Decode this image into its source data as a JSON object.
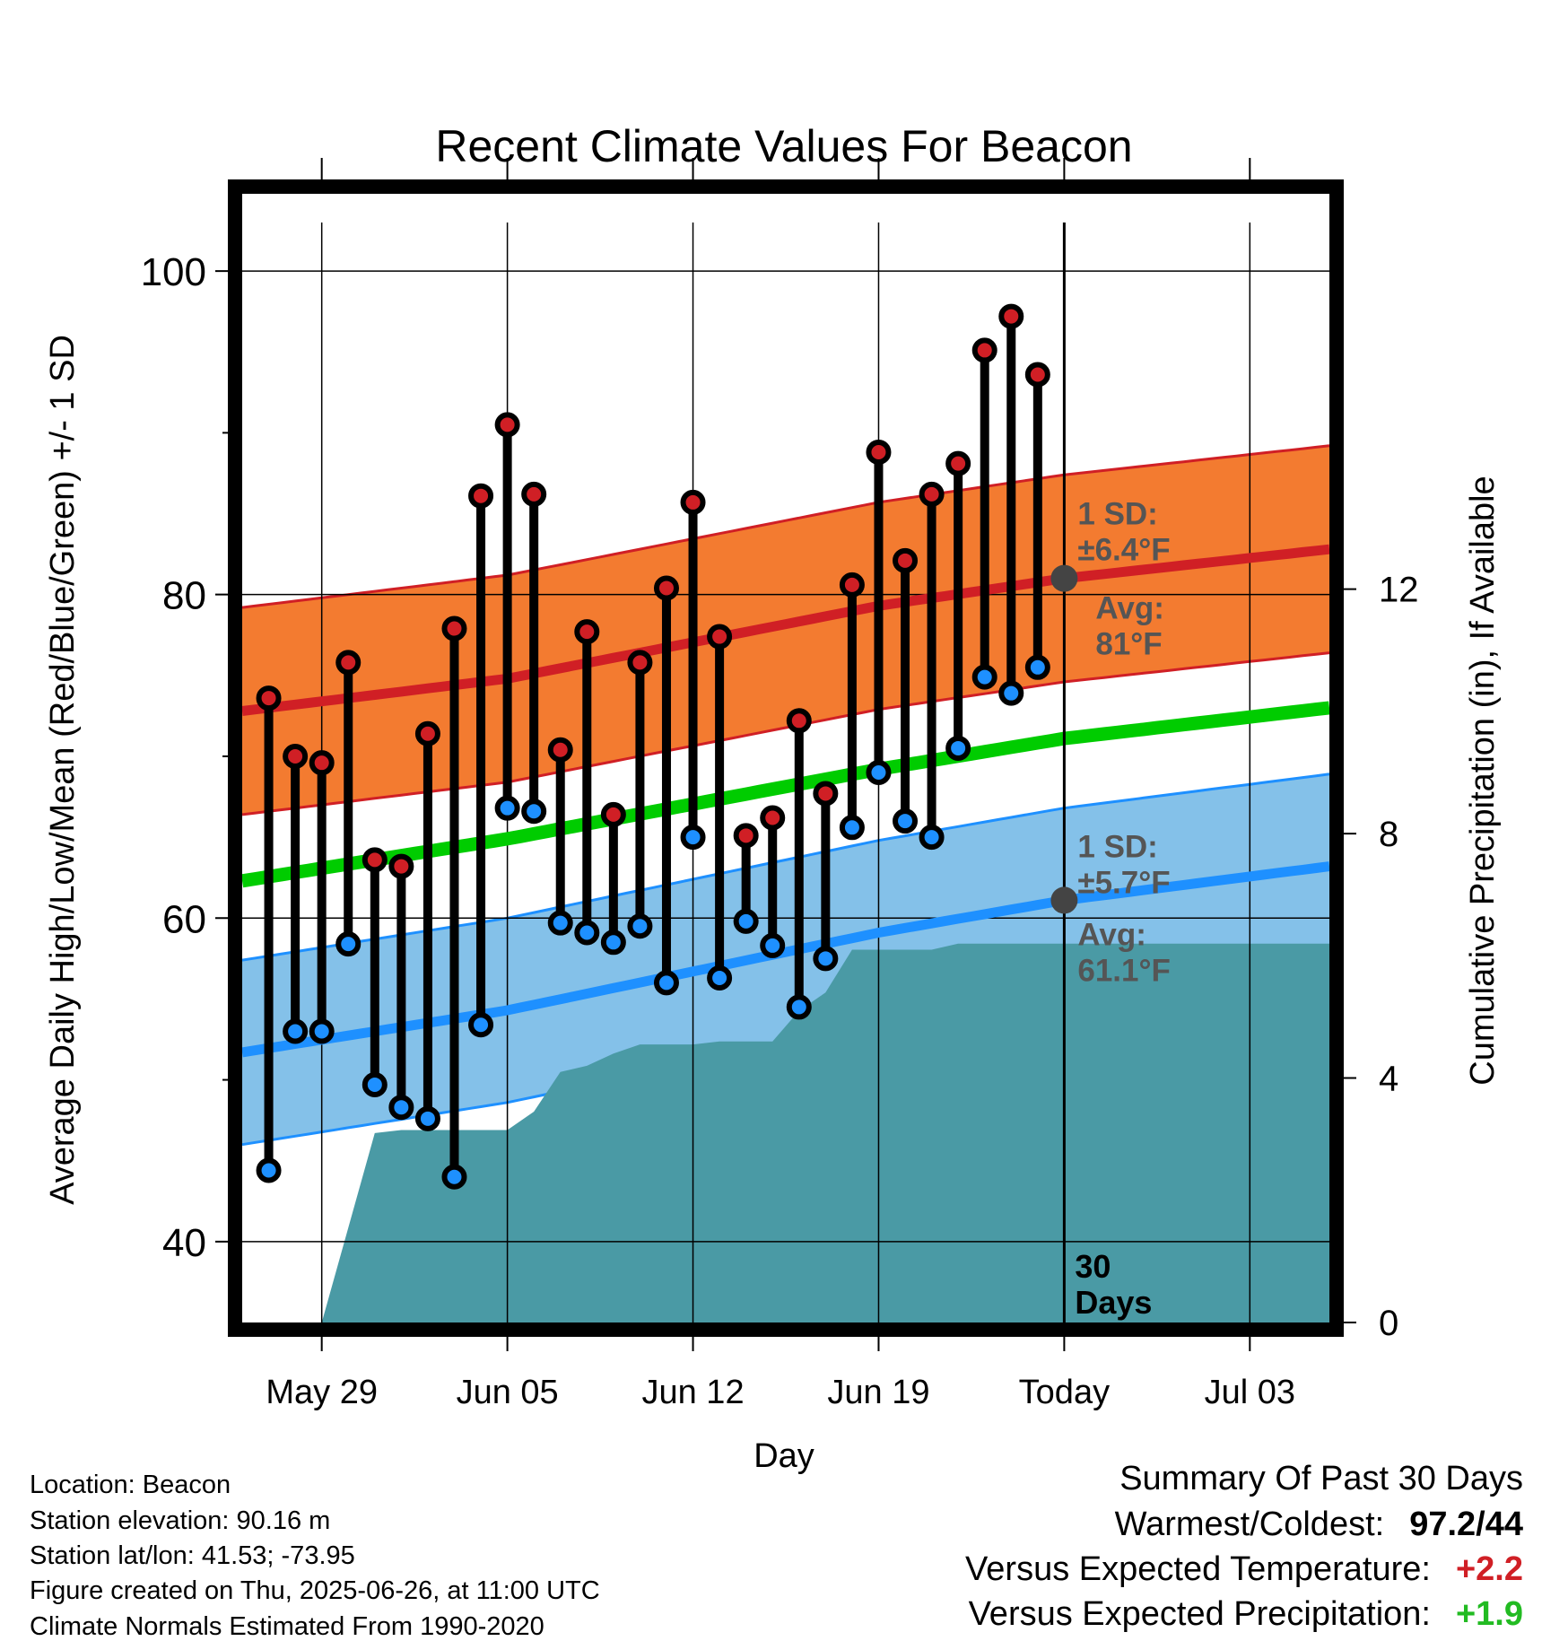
{
  "chart_data": {
    "type": "line",
    "title": "Recent Climate Values For Beacon",
    "xlabel": "Day",
    "ylabel": "Average Daily High/Low/Mean (Red/Blue/Green) +/- 1 SD",
    "y2label": "Cumulative Precipitation (in), If Available",
    "ylim": [
      35,
      103
    ],
    "y2lim": [
      0,
      18
    ],
    "yticks": [
      40,
      60,
      80,
      100
    ],
    "y2ticks": [
      0,
      4,
      8,
      12
    ],
    "x_range": [
      "2025-05-26",
      "2025-07-06"
    ],
    "xticks": [
      {
        "date": "2025-05-29",
        "label": "May 29"
      },
      {
        "date": "2025-06-05",
        "label": "Jun 05"
      },
      {
        "date": "2025-06-12",
        "label": "Jun 12"
      },
      {
        "date": "2025-06-19",
        "label": "Jun 19"
      },
      {
        "date": "2025-06-26",
        "label": "Today"
      },
      {
        "date": "2025-07-03",
        "label": "Jul 03"
      }
    ],
    "grid": true,
    "today": "2025-06-26",
    "window_label": [
      "30",
      "Days"
    ],
    "normals": {
      "dates": [
        "2025-05-26",
        "2025-06-05",
        "2025-06-19",
        "2025-06-26",
        "2025-07-06"
      ],
      "high_avg": [
        72.8,
        74.8,
        79.3,
        81.0,
        82.8
      ],
      "high_sd": 6.4,
      "low_avg": [
        51.7,
        54.3,
        59.1,
        61.1,
        63.2
      ],
      "low_sd": 5.7,
      "mean_avg": [
        62.3,
        64.9,
        69.2,
        71.1,
        73.0
      ]
    },
    "annotations": {
      "high_sd": [
        "1 SD:",
        "±6.4°F"
      ],
      "high_avg": [
        "Avg:",
        "81°F"
      ],
      "low_sd": [
        "1 SD:",
        "±5.7°F"
      ],
      "low_avg": [
        "Avg:",
        "61.1°F"
      ]
    },
    "daily": {
      "dates": [
        "2025-05-27",
        "2025-05-28",
        "2025-05-29",
        "2025-05-30",
        "2025-05-31",
        "2025-06-01",
        "2025-06-02",
        "2025-06-03",
        "2025-06-04",
        "2025-06-05",
        "2025-06-06",
        "2025-06-07",
        "2025-06-08",
        "2025-06-09",
        "2025-06-10",
        "2025-06-11",
        "2025-06-12",
        "2025-06-13",
        "2025-06-14",
        "2025-06-15",
        "2025-06-16",
        "2025-06-17",
        "2025-06-18",
        "2025-06-19",
        "2025-06-20",
        "2025-06-21",
        "2025-06-22",
        "2025-06-23",
        "2025-06-24",
        "2025-06-25"
      ],
      "high": [
        73.6,
        70.0,
        69.6,
        75.8,
        63.6,
        63.2,
        71.4,
        77.9,
        86.1,
        90.5,
        86.2,
        70.4,
        77.7,
        66.4,
        75.8,
        80.4,
        85.7,
        77.4,
        65.1,
        66.2,
        72.2,
        67.7,
        80.6,
        88.8,
        82.1,
        86.2,
        88.1,
        95.1,
        97.2,
        93.6
      ],
      "low": [
        44.4,
        53.0,
        53.0,
        58.4,
        49.7,
        48.3,
        47.6,
        44.0,
        53.4,
        66.8,
        66.6,
        59.7,
        59.1,
        58.5,
        59.5,
        56.0,
        65.0,
        56.3,
        59.8,
        58.3,
        54.5,
        57.5,
        65.6,
        69.0,
        66.0,
        65.0,
        70.5,
        74.9,
        73.9,
        75.5
      ]
    },
    "precip": {
      "dates": [
        "2025-05-29",
        "2025-05-31",
        "2025-06-01",
        "2025-06-02",
        "2025-06-03",
        "2025-06-04",
        "2025-06-05",
        "2025-06-06",
        "2025-06-07",
        "2025-06-08",
        "2025-06-09",
        "2025-06-10",
        "2025-06-11",
        "2025-06-12",
        "2025-06-13",
        "2025-06-14",
        "2025-06-15",
        "2025-06-16",
        "2025-06-17",
        "2025-06-18",
        "2025-06-19",
        "2025-06-20",
        "2025-06-21",
        "2025-06-22",
        "2025-06-23",
        "2025-06-24",
        "2025-06-25",
        "2025-06-26",
        "2025-07-06"
      ],
      "cumulative": [
        0.0,
        3.1,
        3.15,
        3.15,
        3.15,
        3.15,
        3.15,
        3.45,
        4.1,
        4.2,
        4.4,
        4.55,
        4.55,
        4.55,
        4.6,
        4.6,
        4.6,
        5.1,
        5.4,
        6.1,
        6.1,
        6.1,
        6.1,
        6.2,
        6.2,
        6.2,
        6.2,
        6.2,
        6.2
      ]
    },
    "colors": {
      "high": "#d01f25",
      "high_band": "#f37b30",
      "mean": "#00cc00",
      "low": "#1e90ff",
      "low_band": "#84c1e9",
      "precip": "#4a9aa5",
      "annotation": "#555555",
      "today_marker": "#444444"
    }
  },
  "footer": {
    "location": "Location: Beacon",
    "elevation": "Station elevation: 90.16 m",
    "latlon": "Station lat/lon: 41.53; -73.95",
    "created": "Figure created on Thu, 2025-06-26, at 11:00 UTC",
    "normals": "Climate Normals Estimated From 1990-2020"
  },
  "summary": {
    "title": "Summary Of Past 30 Days",
    "warmest_coldest_label": "Warmest/Coldest:",
    "warmest_coldest_value": "97.2/44",
    "temp_label": "Versus Expected Temperature:",
    "temp_value": "+2.2",
    "temp_color": "#d01f25",
    "precip_label": "Versus Expected Precipitation:",
    "precip_value": "+1.9",
    "precip_color": "#22bb22"
  }
}
